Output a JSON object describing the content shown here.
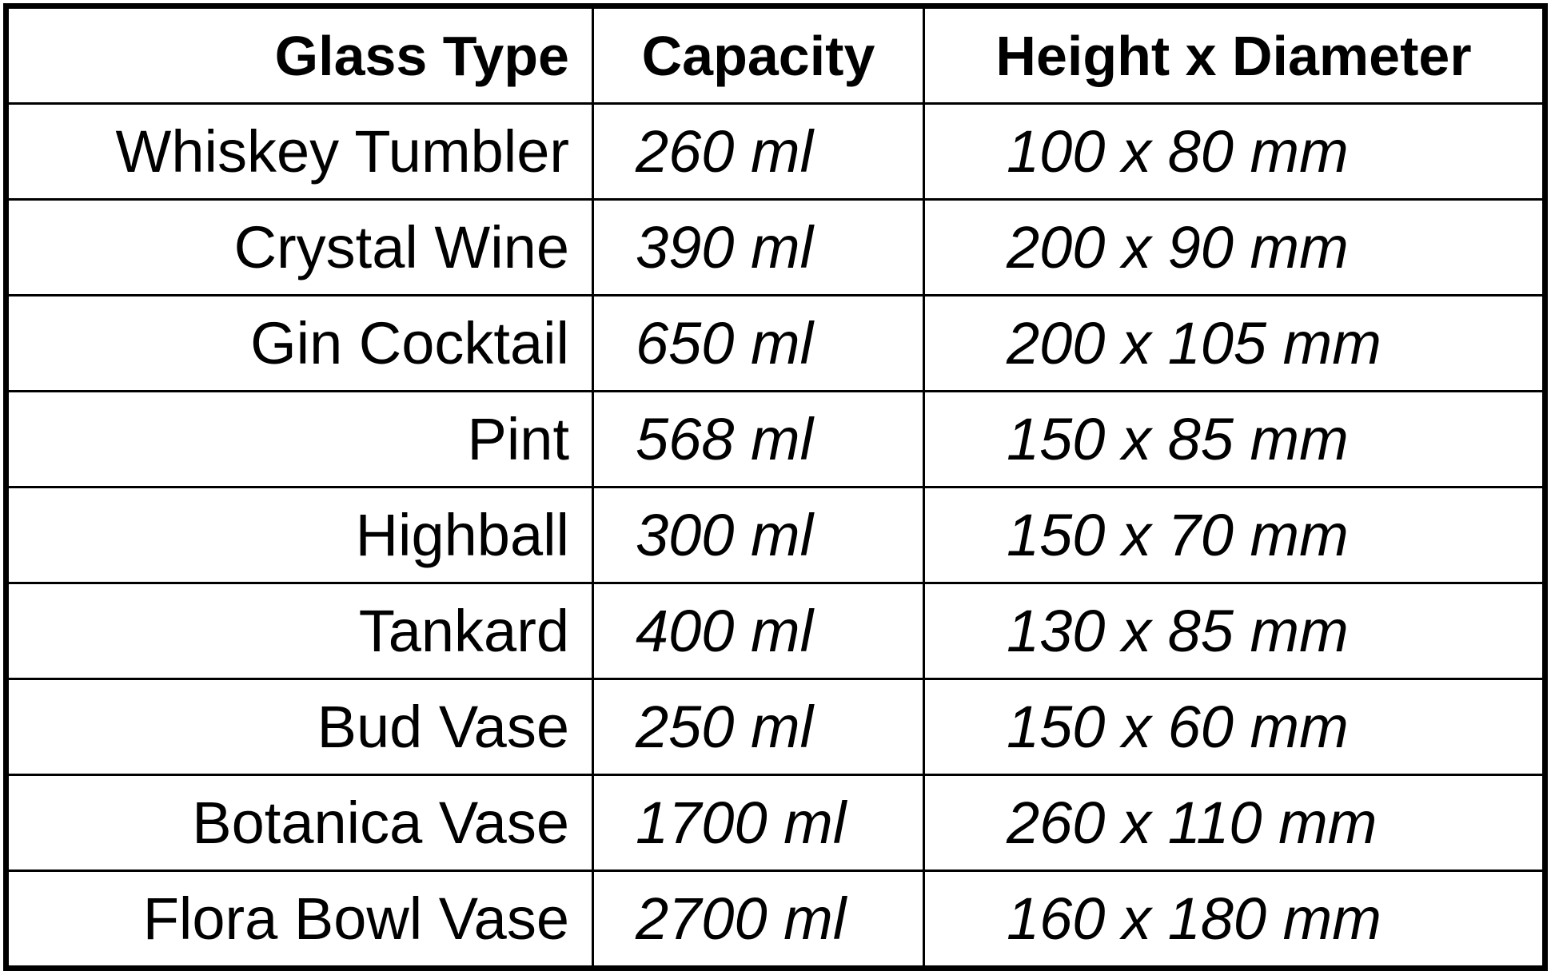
{
  "table": {
    "headers": [
      "Glass Type",
      "Capacity",
      "Height x Diameter"
    ],
    "rows": [
      {
        "type": "Whiskey Tumbler",
        "capacity": "260 ml",
        "dimensions": "100 x 80 mm"
      },
      {
        "type": "Crystal Wine",
        "capacity": "390 ml",
        "dimensions": "200 x 90 mm"
      },
      {
        "type": "Gin Cocktail",
        "capacity": "650 ml",
        "dimensions": "200 x 105 mm"
      },
      {
        "type": "Pint",
        "capacity": "568 ml",
        "dimensions": "150 x 85 mm"
      },
      {
        "type": "Highball",
        "capacity": "300 ml",
        "dimensions": "150 x 70 mm"
      },
      {
        "type": "Tankard",
        "capacity": "400 ml",
        "dimensions": "130 x 85 mm"
      },
      {
        "type": "Bud Vase",
        "capacity": "250 ml",
        "dimensions": "150 x 60 mm"
      },
      {
        "type": "Botanica Vase",
        "capacity": "1700 ml",
        "dimensions": "260 x 110 mm"
      },
      {
        "type": "Flora Bowl Vase",
        "capacity": "2700 ml",
        "dimensions": "160 x 180 mm"
      }
    ]
  }
}
